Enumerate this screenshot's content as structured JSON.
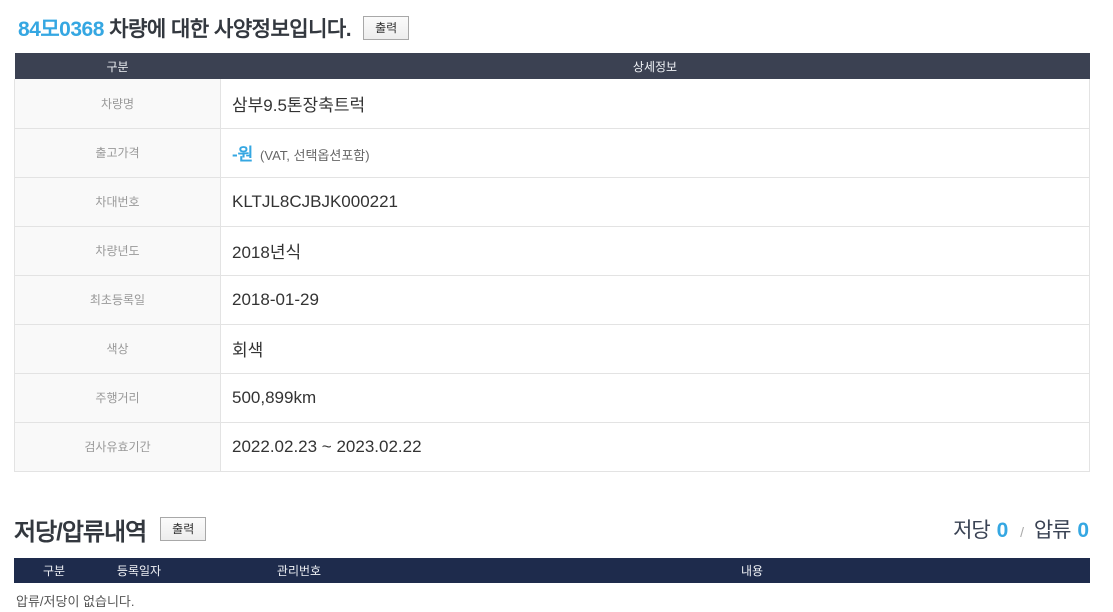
{
  "colors": {
    "accent_blue": "#35a7e2",
    "spec_header_bg": "#3b4152",
    "lien_header_bg": "#1e2b4c",
    "label_text": "#999999",
    "value_text": "#333333"
  },
  "spec_section": {
    "title_plate": "84모0368",
    "title_rest": " 차량에 대한 사양정보입니다.",
    "print_label": "출력",
    "columns": [
      "구분",
      "상세정보"
    ],
    "rows": [
      {
        "label": "차량명",
        "value": "삼부9.5톤장축트럭"
      },
      {
        "label": "출고가격",
        "value": "-원",
        "accent": true,
        "value_suffix": "(VAT, 선택옵션포함)"
      },
      {
        "label": "차대번호",
        "value": "KLTJL8CJBJK000221"
      },
      {
        "label": "차량년도",
        "value": "2018년식"
      },
      {
        "label": "최초등록일",
        "value": "2018-01-29"
      },
      {
        "label": "색상",
        "value": "회색"
      },
      {
        "label": "주행거리",
        "value": "500,899km"
      },
      {
        "label": "검사유효기간",
        "value": "2022.02.23 ~ 2023.02.22"
      }
    ]
  },
  "lien_section": {
    "title": "저당/압류내역",
    "print_label": "출력",
    "mortgage_label": "저당",
    "mortgage_count": "0",
    "separator": "/",
    "seizure_label": "압류",
    "seizure_count": "0",
    "columns": [
      "구분",
      "등록일자",
      "관리번호",
      "내용"
    ],
    "empty_message": "압류/저당이 없습니다."
  }
}
